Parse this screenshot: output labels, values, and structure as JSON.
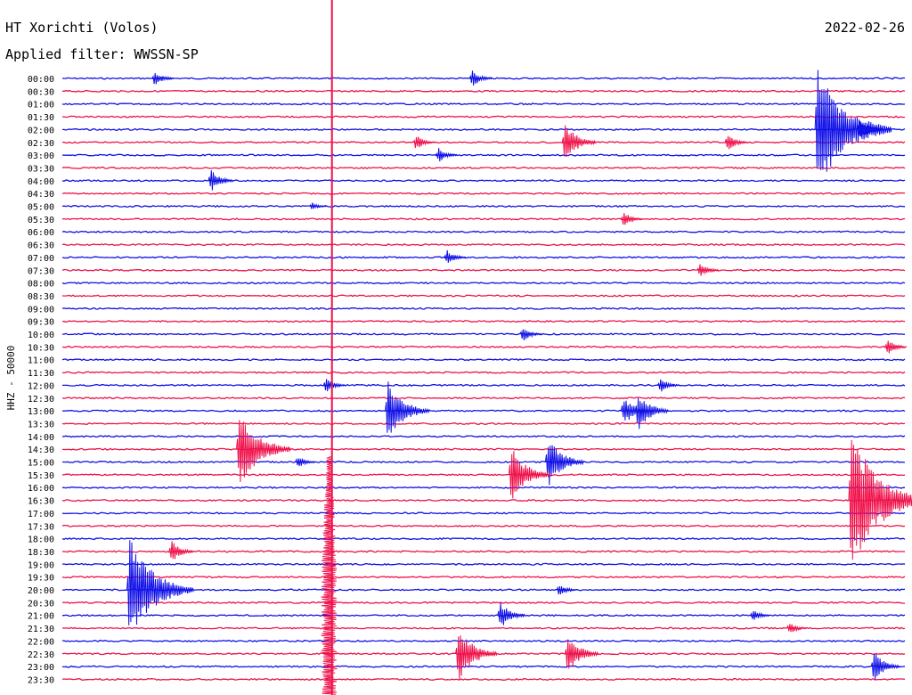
{
  "header": {
    "station": "HT Xorichti (Volos)",
    "filter": "Applied filter: WWSSN-SP",
    "date": "2022-02-26"
  },
  "axis": {
    "channel_label": "HHZ - 50000"
  },
  "colors": {
    "even_trace": "#1010e8",
    "odd_trace": "#f0104a",
    "text": "#000000",
    "background": "#ffffff"
  },
  "chart_data": {
    "type": "line",
    "title": "",
    "xlabel": "",
    "ylabel": "HHZ - 50000",
    "grid": false,
    "legend": "none",
    "rows": [
      "00:00",
      "00:30",
      "01:00",
      "01:30",
      "02:00",
      "02:30",
      "03:00",
      "03:30",
      "04:00",
      "04:30",
      "05:00",
      "05:30",
      "06:00",
      "06:30",
      "07:00",
      "07:30",
      "08:00",
      "08:30",
      "09:00",
      "09:30",
      "10:00",
      "10:30",
      "11:00",
      "11:30",
      "12:00",
      "12:30",
      "13:00",
      "13:30",
      "14:00",
      "14:30",
      "15:00",
      "15:30",
      "16:00",
      "16:30",
      "17:00",
      "17:30",
      "18:00",
      "18:30",
      "19:00",
      "19:30",
      "20:00",
      "20:30",
      "21:00",
      "21:30",
      "22:00",
      "22:30",
      "23:00",
      "23:30"
    ],
    "minutes_per_row": 30,
    "events": [
      {
        "row": 0,
        "minute": 3.2,
        "amplitude": 0.6
      },
      {
        "row": 0,
        "minute": 14.5,
        "amplitude": 0.7
      },
      {
        "row": 4,
        "minute": 26.8,
        "amplitude": 5.0
      },
      {
        "row": 4,
        "minute": 28.3,
        "amplitude": 0.9
      },
      {
        "row": 5,
        "minute": 12.5,
        "amplitude": 0.6
      },
      {
        "row": 5,
        "minute": 17.8,
        "amplitude": 1.6
      },
      {
        "row": 5,
        "minute": 23.6,
        "amplitude": 0.7
      },
      {
        "row": 6,
        "minute": 13.3,
        "amplitude": 0.6
      },
      {
        "row": 8,
        "minute": 5.2,
        "amplitude": 0.9
      },
      {
        "row": 10,
        "minute": 8.8,
        "amplitude": 0.3
      },
      {
        "row": 11,
        "minute": 19.9,
        "amplitude": 0.6
      },
      {
        "row": 14,
        "minute": 13.6,
        "amplitude": 0.6
      },
      {
        "row": 15,
        "minute": 22.6,
        "amplitude": 0.6
      },
      {
        "row": 20,
        "minute": 16.3,
        "amplitude": 0.6
      },
      {
        "row": 21,
        "minute": 29.3,
        "amplitude": 0.6
      },
      {
        "row": 24,
        "minute": 9.3,
        "amplitude": 0.6
      },
      {
        "row": 24,
        "minute": 21.2,
        "amplitude": 0.6
      },
      {
        "row": 26,
        "minute": 11.5,
        "amplitude": 2.4
      },
      {
        "row": 26,
        "minute": 19.9,
        "amplitude": 1.2
      },
      {
        "row": 26,
        "minute": 20.4,
        "amplitude": 1.6
      },
      {
        "row": 29,
        "minute": 6.2,
        "amplitude": 3.2
      },
      {
        "row": 30,
        "minute": 17.2,
        "amplitude": 2.0
      },
      {
        "row": 30,
        "minute": 8.3,
        "amplitude": 0.5
      },
      {
        "row": 31,
        "minute": 15.9,
        "amplitude": 2.2
      },
      {
        "row": 33,
        "minute": 28.0,
        "amplitude": 5.4
      },
      {
        "row": 37,
        "minute": 3.8,
        "amplitude": 0.9
      },
      {
        "row": 40,
        "minute": 2.3,
        "amplitude": 4.2
      },
      {
        "row": 40,
        "minute": 17.6,
        "amplitude": 0.5
      },
      {
        "row": 42,
        "minute": 15.5,
        "amplitude": 1.1
      },
      {
        "row": 42,
        "minute": 24.5,
        "amplitude": 0.5
      },
      {
        "row": 43,
        "minute": 25.8,
        "amplitude": 0.5
      },
      {
        "row": 45,
        "minute": 14.0,
        "amplitude": 2.2
      },
      {
        "row": 45,
        "minute": 17.9,
        "amplitude": 1.6
      },
      {
        "row": 46,
        "minute": 28.8,
        "amplitude": 1.2
      }
    ],
    "clipped_events": [
      {
        "row_start": 0,
        "row_end": 47,
        "minute": 9.6
      },
      {
        "row_start": 31,
        "row_end": 47,
        "minute": 9.5
      }
    ]
  }
}
